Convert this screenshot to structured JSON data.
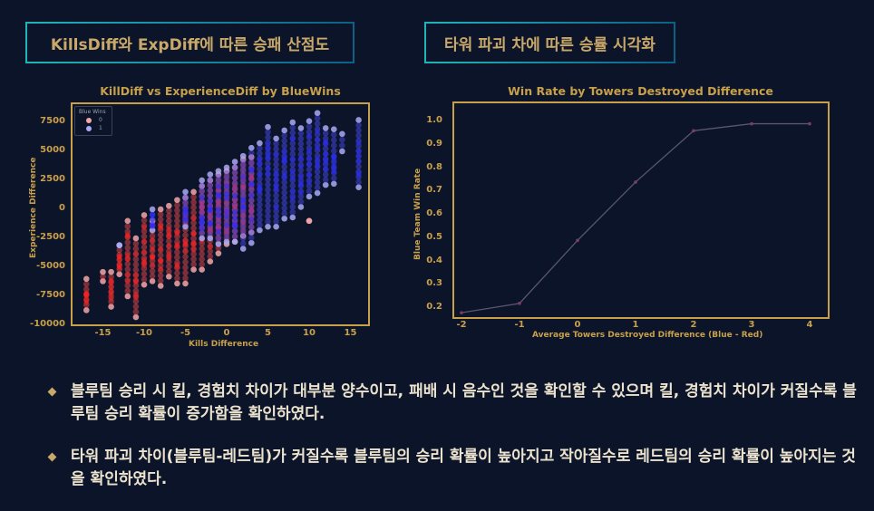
{
  "sections": {
    "left_title": "KillsDiff와 ExpDiff에 따른 승패 산점도",
    "right_title": "타워 파괴 차에 따른 승률 시각화"
  },
  "colors": {
    "background": "#0b1429",
    "accent_gold": "#c9a04a",
    "title_text": "#c9a96a",
    "title_border_start": "#1fb5b8",
    "title_border_end": "#0f5f86",
    "loss_color": "#ff4d4d",
    "win_color": "#4d4dff",
    "line_color": "#5c5570",
    "marker_color": "#7a3d6a"
  },
  "chart_data": [
    {
      "type": "scatter",
      "title": "KillDiff vs ExperienceDiff by BlueWins",
      "xlabel": "Kills Difference",
      "ylabel": "Experience Difference",
      "xticks": [
        -15,
        -10,
        -5,
        0,
        5,
        10,
        15
      ],
      "yticks": [
        7500,
        5000,
        2500,
        0,
        -2500,
        -5000,
        -7500,
        -10000
      ],
      "xlim": [
        -18.5,
        17
      ],
      "ylim": [
        -10000,
        9500
      ],
      "legend": {
        "title": "Blue Wins",
        "entries": [
          "0",
          "1"
        ],
        "position": "upper left"
      },
      "series": [
        {
          "name": "0",
          "color": "#f4a7a7",
          "description": "Red/loss points concentrated at negative kill & experience difference",
          "columns": [
            {
              "x": -17,
              "ymin": -8700,
              "ymax": -6000
            },
            {
              "x": -15,
              "ymin": -6200,
              "ymax": -5400
            },
            {
              "x": -14,
              "ymin": -8400,
              "ymax": -5400
            },
            {
              "x": -13,
              "ymin": -5600,
              "ymax": -3100
            },
            {
              "x": -12,
              "ymin": -7500,
              "ymax": -1000
            },
            {
              "x": -11,
              "ymin": -9300,
              "ymax": -2500
            },
            {
              "x": -10,
              "ymin": -6500,
              "ymax": -500
            },
            {
              "x": -9,
              "ymin": -6200,
              "ymax": -1000
            },
            {
              "x": -8,
              "ymin": -6600,
              "ymax": 0
            },
            {
              "x": -7,
              "ymin": -5800,
              "ymax": 300
            },
            {
              "x": -6,
              "ymin": -6400,
              "ymax": 800
            },
            {
              "x": -5,
              "ymin": -6400,
              "ymax": 1000
            },
            {
              "x": -4,
              "ymin": -5200,
              "ymax": 1500
            },
            {
              "x": -3,
              "ymin": -5200,
              "ymax": 2000
            },
            {
              "x": -2,
              "ymin": -4500,
              "ymax": 2500
            },
            {
              "x": -1,
              "ymin": -3800,
              "ymax": 3000
            },
            {
              "x": 0,
              "ymin": -3000,
              "ymax": 3300
            },
            {
              "x": 1,
              "ymin": -2800,
              "ymax": 3600
            },
            {
              "x": 2,
              "ymin": -2300,
              "ymax": 4300
            },
            {
              "x": 3,
              "ymin": -2000,
              "ymax": 4500
            },
            {
              "x": 10,
              "ymin": -1000,
              "ymax": -1000
            }
          ]
        },
        {
          "name": "1",
          "color": "#a9a9f4",
          "description": "Blue/win points concentrated at positive kill & experience difference",
          "columns": [
            {
              "x": -13,
              "ymin": -3100,
              "ymax": -3100
            },
            {
              "x": -9,
              "ymin": -1800,
              "ymax": 0
            },
            {
              "x": -5,
              "ymin": -1500,
              "ymax": 1500
            },
            {
              "x": -3,
              "ymin": -2500,
              "ymax": 2500
            },
            {
              "x": -2,
              "ymin": -2500,
              "ymax": 3000
            },
            {
              "x": -1,
              "ymin": -3000,
              "ymax": 3300
            },
            {
              "x": 0,
              "ymin": -2800,
              "ymax": 3600
            },
            {
              "x": 1,
              "ymin": -2800,
              "ymax": 4100
            },
            {
              "x": 2,
              "ymin": -3400,
              "ymax": 4600
            },
            {
              "x": 3,
              "ymin": -2900,
              "ymax": 5300
            },
            {
              "x": 4,
              "ymin": -1800,
              "ymax": 5700
            },
            {
              "x": 5,
              "ymin": -1500,
              "ymax": 7100
            },
            {
              "x": 6,
              "ymin": -1500,
              "ymax": 6100
            },
            {
              "x": 7,
              "ymin": -800,
              "ymax": 6800
            },
            {
              "x": 8,
              "ymin": -700,
              "ymax": 7500
            },
            {
              "x": 9,
              "ymin": 200,
              "ymax": 7000
            },
            {
              "x": 10,
              "ymin": 1100,
              "ymax": 7600
            },
            {
              "x": 11,
              "ymin": 1400,
              "ymax": 8300
            },
            {
              "x": 12,
              "ymin": 2100,
              "ymax": 7000
            },
            {
              "x": 13,
              "ymin": 2200,
              "ymax": 6900
            },
            {
              "x": 14,
              "ymin": 5000,
              "ymax": 6500
            },
            {
              "x": 16,
              "ymin": 1900,
              "ymax": 7700
            }
          ]
        }
      ],
      "trend": "positive correlation"
    },
    {
      "type": "line",
      "title": "Win Rate by Towers Destroyed Difference",
      "xlabel": "Average Towers Destroyed Difference (Blue - Red)",
      "ylabel": "Blue Team Win Rate",
      "x": [
        -2,
        -1,
        0,
        1,
        2,
        3,
        4
      ],
      "values": [
        0.18,
        0.22,
        0.49,
        0.74,
        0.96,
        0.99,
        0.99
      ],
      "xticks": [
        -2,
        -1,
        0,
        1,
        2,
        3,
        4
      ],
      "yticks": [
        1.0,
        0.9,
        0.8,
        0.7,
        0.6,
        0.5,
        0.4,
        0.3,
        0.2
      ],
      "xlim": [
        -2.15,
        4.3
      ],
      "ylim": [
        0.16,
        1.08
      ]
    }
  ],
  "bullets": [
    "블루팀 승리 시 킬, 경험치 차이가 대부분 양수이고, 패배 시 음수인 것을 확인할 수 있으며 킬, 경험치 차이가 커질수록 블루팀 승리 확률이 증가함을 확인하였다.",
    "타워 파괴 차이(블루팀-레드팀)가 커질수록 블루팀의 승리 확률이 높아지고 작아질수로 레드팀의 승리 확률이 높아지는 것을 확인하였다."
  ]
}
